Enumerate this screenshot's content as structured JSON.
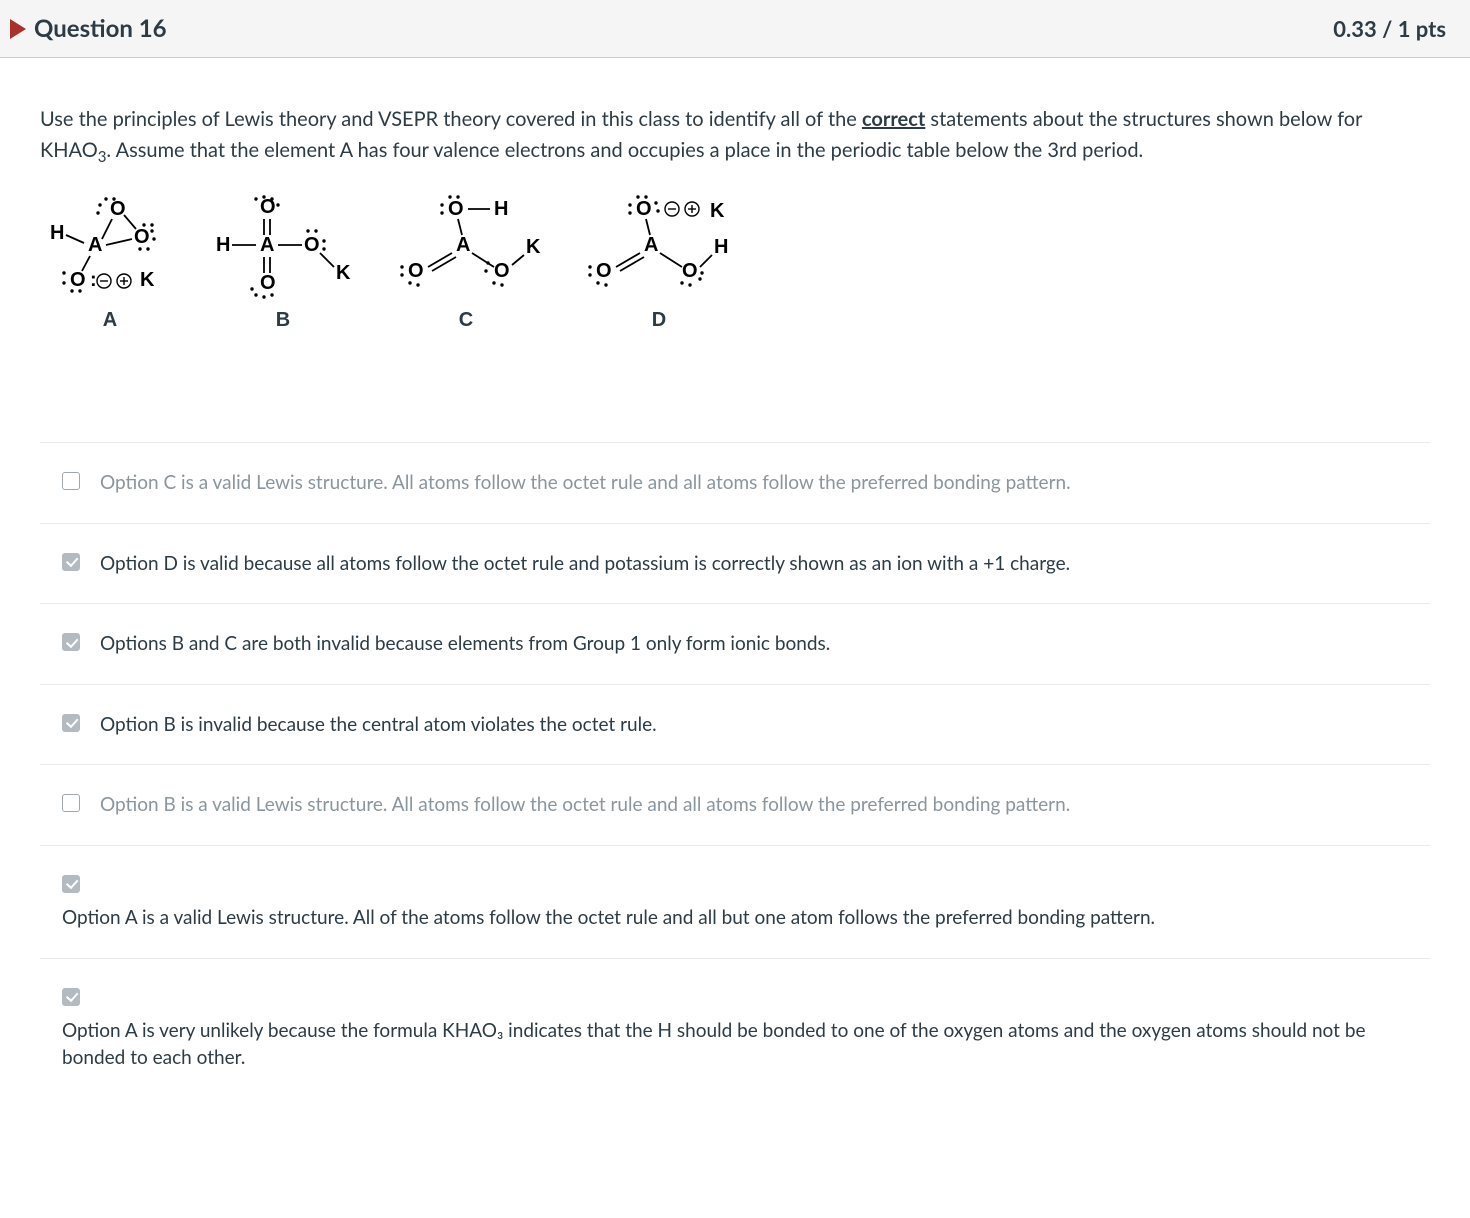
{
  "header": {
    "title": "Question 16",
    "points": "0.33 / 1 pts",
    "marker_color": "#a9302b"
  },
  "prompt": {
    "pre": "Use the principles of Lewis theory and VSEPR theory covered in this class to identify all of the ",
    "emph": "correct",
    "post_1": " statements about the structures shown below for KHAO",
    "sub": "3",
    "post_2": ". Assume that the element A has four valence electrons and occupies a place in the periodic table below the 3rd period."
  },
  "structures": {
    "labels": [
      "A",
      "B",
      "C",
      "D"
    ],
    "stroke_color": "#000000",
    "atoms": [
      "H",
      "A",
      "O",
      "K"
    ],
    "lone_pair_dot_color": "#000000",
    "font_family": "Arial",
    "font_weight": "700",
    "A": {
      "central": "A",
      "bonds": [
        {
          "to": "H",
          "type": "single"
        },
        {
          "to": "O_top",
          "type": "single",
          "lone_pairs": 2
        },
        {
          "to": "O_right",
          "type": "single",
          "lone_pairs": 3
        },
        {
          "to": "O_bottom",
          "type": "single",
          "lone_pairs": 2,
          "charged": "-"
        }
      ],
      "counterion": {
        "atom": "K",
        "charge": "+",
        "attached_near": "O_bottom"
      },
      "ring": {
        "edge": [
          "O_top",
          "O_right"
        ],
        "note": "O-O bond present in triangle"
      }
    },
    "B": {
      "central": "A",
      "bonds": [
        {
          "to": "H",
          "type": "single"
        },
        {
          "to": "O_top",
          "type": "double",
          "lone_pairs": 2
        },
        {
          "to": "O_bottom",
          "type": "double",
          "lone_pairs": 2
        },
        {
          "to": "O_right",
          "type": "single",
          "lone_pairs": 2,
          "then_single_to": "K"
        }
      ]
    },
    "C": {
      "central": "A",
      "bonds": [
        {
          "to": "O_top",
          "type": "single",
          "lone_pairs": 2,
          "then_single_to": "H"
        },
        {
          "to": "O_left",
          "type": "double",
          "lone_pairs": 2
        },
        {
          "to": "O_right",
          "type": "single",
          "lone_pairs": 2,
          "then_single_to": "K"
        }
      ]
    },
    "D": {
      "central": "A",
      "bonds": [
        {
          "to": "O_top",
          "type": "single",
          "lone_pairs": 3,
          "charge": "-",
          "counterion": {
            "atom": "K",
            "charge": "+"
          }
        },
        {
          "to": "O_left",
          "type": "double",
          "lone_pairs": 2
        },
        {
          "to": "O_right",
          "type": "single",
          "lone_pairs": 2,
          "then_single_to": "H"
        }
      ]
    }
  },
  "answers": [
    {
      "checked": false,
      "dim": true,
      "stack": false,
      "text": "Option C is a valid Lewis structure. All atoms follow the octet rule and all atoms follow the preferred bonding pattern."
    },
    {
      "checked": true,
      "dim": false,
      "stack": false,
      "text": "Option D is valid because all atoms follow the octet rule and potassium is correctly shown as an ion with a +1 charge."
    },
    {
      "checked": true,
      "dim": false,
      "stack": false,
      "text": "Options B and C are both invalid because elements from Group 1 only form ionic bonds."
    },
    {
      "checked": true,
      "dim": false,
      "stack": false,
      "text": "Option B is invalid because the central atom violates the octet rule."
    },
    {
      "checked": false,
      "dim": true,
      "stack": false,
      "text": "Option B is a valid Lewis structure. All atoms follow the octet rule and all atoms follow the preferred bonding pattern."
    },
    {
      "checked": true,
      "dim": false,
      "stack": true,
      "text": "Option A is a valid Lewis structure. All of the atoms follow the octet rule and all but one atom follows the preferred bonding pattern."
    },
    {
      "checked": true,
      "dim": false,
      "stack": true,
      "text": "Option A is very unlikely because the formula KHAO₃ indicates that the H should be bonded to one of the oxygen atoms and the oxygen atoms should not be bonded to each other."
    }
  ],
  "colors": {
    "header_bg": "#f5f5f5",
    "divider": "#e8eaec",
    "text": "#2d3b45",
    "dim_text": "#8a959c",
    "checkbox_checked_bg": "#b4bbc0"
  }
}
